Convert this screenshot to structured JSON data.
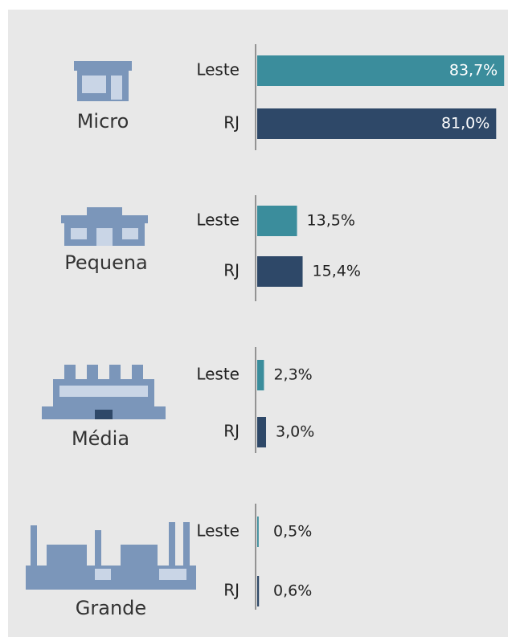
{
  "chart_data": {
    "type": "bar",
    "categories": [
      "Micro",
      "Pequena",
      "Média",
      "Grande"
    ],
    "series": [
      {
        "name": "Leste",
        "color": "#3b8d9c",
        "values": [
          83.7,
          13.5,
          2.3,
          0.5
        ],
        "value_labels": [
          "83,7%",
          "13,5%",
          "2,3%",
          "0,5%"
        ]
      },
      {
        "name": "RJ",
        "color": "#2e4868",
        "values": [
          81.0,
          15.4,
          3.0,
          0.6
        ],
        "value_labels": [
          "81,0%",
          "15,4%",
          "3,0%",
          "0,6%"
        ]
      }
    ],
    "xlim": [
      0,
      85
    ]
  }
}
